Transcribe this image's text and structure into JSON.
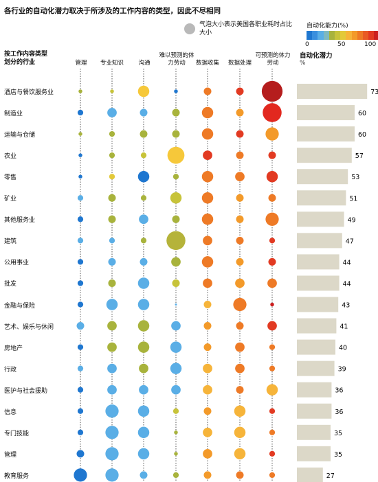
{
  "title": "各行业的自动化潜力取决于所涉及的工作内容的类型，因此不尽相同",
  "bubble_legend": "气泡大小表示美国各职业耗时占比大小",
  "color_scale": {
    "label": "自动化能力(%)",
    "ticks": [
      "0",
      "50",
      "100"
    ],
    "colors": [
      "#1f77d0",
      "#3a8fde",
      "#5aaee6",
      "#7fb9c0",
      "#a8b33c",
      "#c7c33a",
      "#e3c93a",
      "#f6b43a",
      "#f39a2a",
      "#ee7a26",
      "#e95a24",
      "#e23a22",
      "#cc1f1f"
    ]
  },
  "row_header": [
    "按工作内容类型",
    "划分的行业"
  ],
  "columns": [
    "管理",
    "专业知识",
    "沟通",
    "难以预测的体力劳动",
    "数据收集",
    "数据处理",
    "可预测的体力劳动"
  ],
  "potential_header": "自动化潜力",
  "potential_unit": "%",
  "chart_data": {
    "type": "bubble-matrix-with-bar",
    "x_categories": [
      "管理",
      "专业知识",
      "沟通",
      "难以预测的体力劳动",
      "数据收集",
      "数据处理",
      "可预测的体力劳动"
    ],
    "y_categories": [
      "酒店与餐饮服务业",
      "制造业",
      "运输与仓储",
      "农业",
      "零售",
      "矿业",
      "其他服务业",
      "建筑",
      "公用事业",
      "批发",
      "金融与保险",
      "艺术、娱乐与休闲",
      "房地产",
      "行政",
      "医护与社会援助",
      "信息",
      "专门技能",
      "管理",
      "教育服务"
    ],
    "color_ability_percent_by_column": [
      9,
      25,
      20,
      26,
      64,
      69,
      78
    ],
    "time_share_relative": [
      [
        1,
        1,
        3,
        1,
        2,
        2,
        5.5
      ],
      [
        1.5,
        2.5,
        2,
        2,
        3,
        2,
        5
      ],
      [
        1,
        1.5,
        2,
        2,
        3,
        2,
        3.5
      ],
      [
        1,
        1.5,
        1.5,
        4.5,
        2.5,
        2,
        2
      ],
      [
        1,
        1.5,
        3,
        1.5,
        3,
        2.5,
        3
      ],
      [
        1.5,
        2,
        1.5,
        3,
        3,
        2,
        2
      ],
      [
        1.5,
        2,
        2.5,
        2,
        3,
        2,
        3.5
      ],
      [
        1.5,
        1.5,
        1.5,
        5,
        2.5,
        2,
        1.5
      ],
      [
        1.5,
        2,
        2,
        2.5,
        3,
        2,
        2
      ],
      [
        1.5,
        2,
        3,
        2,
        2.5,
        2.5,
        2.5
      ],
      [
        1.5,
        3,
        3,
        0.5,
        2,
        3.5,
        1
      ],
      [
        2,
        2.5,
        3,
        2.5,
        2,
        2,
        2.5
      ],
      [
        1.5,
        2.5,
        3,
        3,
        2,
        2.5,
        1.5
      ],
      [
        1.5,
        2.5,
        2.5,
        3,
        2.5,
        2.5,
        1.5
      ],
      [
        1.5,
        2.5,
        2.5,
        2.5,
        2.5,
        2,
        3
      ],
      [
        1.5,
        3.5,
        3,
        1.5,
        2,
        3,
        1.5
      ],
      [
        1.5,
        3.5,
        3,
        1,
        2.5,
        3,
        1.5
      ],
      [
        2,
        3.5,
        3,
        1,
        2.5,
        3,
        1.5
      ],
      [
        3.5,
        3.5,
        2,
        1.5,
        2,
        2,
        1.5
      ]
    ],
    "automation_potential": [
      73,
      60,
      60,
      57,
      53,
      51,
      49,
      47,
      44,
      44,
      43,
      41,
      40,
      39,
      36,
      36,
      35,
      35,
      27
    ],
    "bar_xlim": [
      0,
      100
    ]
  }
}
